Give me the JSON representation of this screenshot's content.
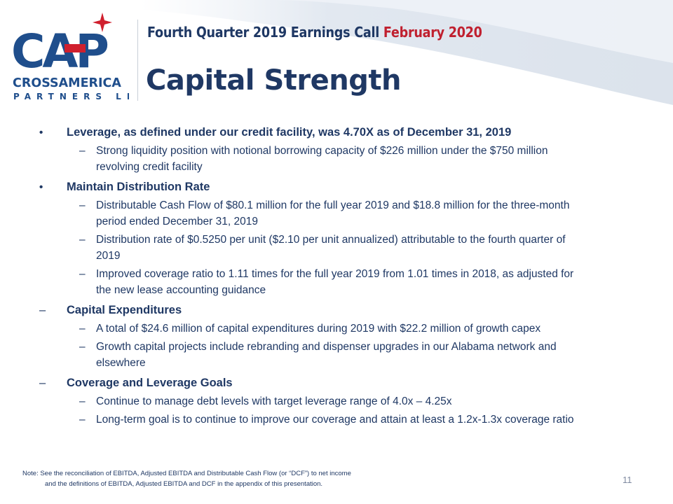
{
  "header": {
    "subtitle_main": "Fourth  Quarter  2019 Earnings  Call ",
    "subtitle_date": "February  2020",
    "title": "Capital Strength"
  },
  "logo": {
    "text_large": "CAP",
    "text_line1": "CROSSAMERICA",
    "text_line2": "PARTNERS LP",
    "colors": {
      "navy": "#1f4e8c",
      "red": "#d0202e",
      "star": "#d0202e"
    }
  },
  "sections": [
    {
      "marker": "•",
      "heading": "Leverage, as defined under our credit facility, was 4.70X as of December 31, 2019",
      "items": [
        "Strong liquidity position with notional borrowing capacity of $226 million under the $750 million revolving credit facility"
      ]
    },
    {
      "marker": "•",
      "heading": "Maintain  Distribution  Rate",
      "items": [
        "Distributable Cash Flow of $80.1 million for the full year 2019 and $18.8 million for the three-month period ended December 31, 2019",
        "Distribution rate of $0.5250 per unit ($2.10 per unit annualized) attributable to the fourth quarter of 2019",
        "Improved coverage ratio to 1.11 times for the full year 2019 from 1.01 times in 2018, as adjusted for the new lease accounting guidance"
      ]
    },
    {
      "marker": "–",
      "heading": "Capital  Expenditures",
      "items": [
        "A total of $24.6 million of capital expenditures during 2019 with $22.2 million of growth capex",
        "Growth capital projects include rebranding and dispenser upgrades in our Alabama network and elsewhere"
      ]
    },
    {
      "marker": "–",
      "heading": "Coverage  and  Leverage  Goals",
      "items": [
        "Continue to manage debt levels with target leverage range of 4.0x – 4.25x",
        "Long-term goal is to continue to improve our coverage and attain at least a 1.2x-1.3x coverage ratio"
      ]
    }
  ],
  "sub_marker": "–",
  "footer": {
    "note_line1": "Note: See the reconciliation of EBITDA, Adjusted EBITDA and Distributable Cash Flow (or “DCF”) to net income",
    "note_line2": "and the definitions of EBITDA, Adjusted EBITDA and DCF in the appendix of this presentation.",
    "page_number": "11"
  }
}
